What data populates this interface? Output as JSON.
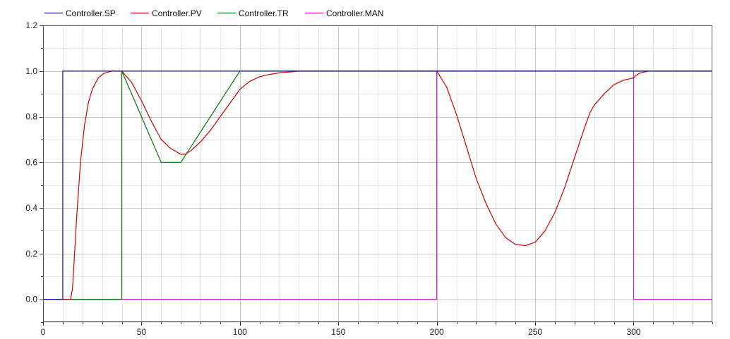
{
  "chart_data": {
    "type": "line",
    "title": "",
    "xlabel": "",
    "ylabel": "",
    "xlim": [
      0,
      340
    ],
    "ylim": [
      -0.1,
      1.2
    ],
    "x_ticks": [
      0,
      50,
      100,
      150,
      200,
      250,
      300
    ],
    "x_tick_labels": [
      "0",
      "50",
      "100",
      "150",
      "200",
      "250",
      "300"
    ],
    "y_ticks": [
      0.0,
      0.2,
      0.4,
      0.6,
      0.8,
      1.0,
      1.2
    ],
    "y_tick_labels": [
      "0.0",
      "0.2",
      "0.4",
      "0.6",
      "0.8",
      "1.0",
      "1.2"
    ],
    "grid": true,
    "legend_placement": "top",
    "series": [
      {
        "name": "Controller.SP",
        "color": "#1a1a99",
        "x": [
          0,
          10,
          10,
          340
        ],
        "y": [
          0,
          0,
          1,
          1
        ]
      },
      {
        "name": "Controller.PV",
        "color": "#cc0000",
        "x": [
          0,
          14,
          15,
          17,
          19,
          21,
          23,
          25,
          28,
          31,
          35,
          40,
          45,
          50,
          55,
          60,
          65,
          70,
          72,
          75,
          80,
          85,
          90,
          95,
          100,
          105,
          110,
          115,
          120,
          125,
          131,
          140,
          160,
          190,
          200,
          205,
          210,
          215,
          220,
          225,
          230,
          235,
          240,
          245,
          250,
          255,
          260,
          265,
          270,
          275,
          278,
          280,
          285,
          290,
          295,
          300,
          301,
          303,
          305,
          308,
          320,
          340
        ],
        "y": [
          0,
          0,
          0.05,
          0.35,
          0.6,
          0.76,
          0.86,
          0.92,
          0.97,
          0.99,
          1.0,
          1.0,
          0.95,
          0.87,
          0.78,
          0.7,
          0.66,
          0.635,
          0.635,
          0.65,
          0.69,
          0.74,
          0.8,
          0.86,
          0.92,
          0.955,
          0.975,
          0.985,
          0.992,
          0.996,
          1.0,
          1.0,
          1.0,
          1.0,
          1.0,
          0.93,
          0.81,
          0.67,
          0.53,
          0.42,
          0.33,
          0.27,
          0.24,
          0.235,
          0.25,
          0.3,
          0.38,
          0.49,
          0.62,
          0.75,
          0.82,
          0.85,
          0.9,
          0.94,
          0.96,
          0.97,
          0.98,
          0.99,
          0.995,
          1.0,
          1.0,
          1.0
        ]
      },
      {
        "name": "Controller.TR",
        "color": "#007700",
        "x": [
          0,
          40,
          40,
          60,
          70,
          100,
          340
        ],
        "y": [
          0,
          0,
          1,
          0.6,
          0.6,
          1,
          1
        ]
      },
      {
        "name": "Controller.MAN",
        "color": "#cc22cc",
        "x": [
          0,
          200,
          200,
          300,
          300,
          340
        ],
        "y": [
          0,
          0,
          1,
          1,
          0,
          0
        ]
      }
    ]
  }
}
